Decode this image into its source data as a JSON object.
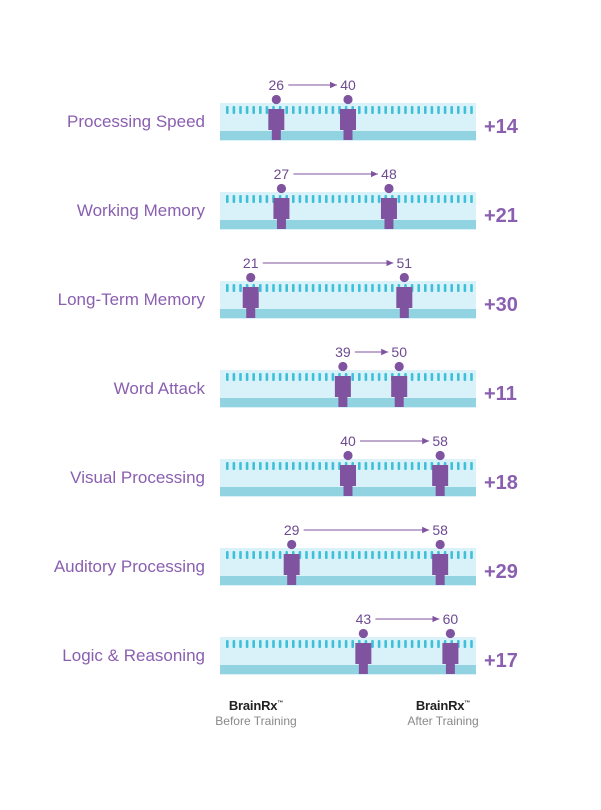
{
  "chart_data": {
    "type": "dumbbell",
    "rows": [
      {
        "label": "Processing Speed",
        "before": 26,
        "after": 40,
        "gain": "+14"
      },
      {
        "label": "Working Memory",
        "before": 27,
        "after": 48,
        "gain": "+21"
      },
      {
        "label": "Long-Term Memory",
        "before": 21,
        "after": 51,
        "gain": "+30"
      },
      {
        "label": "Word Attack",
        "before": 39,
        "after": 50,
        "gain": "+11"
      },
      {
        "label": "Visual Processing",
        "before": 40,
        "after": 58,
        "gain": "+18"
      },
      {
        "label": "Auditory Processing",
        "before": 29,
        "after": 58,
        "gain": "+29"
      },
      {
        "label": "Logic & Reasoning",
        "before": 43,
        "after": 60,
        "gain": "+17"
      }
    ],
    "xlim": [
      15,
      65
    ],
    "colors": {
      "person": "#7f539f",
      "label": "#8a5fb0",
      "value": "#6e4a91",
      "track_light": "#d9f1f8",
      "track_mid": "#92d3e2",
      "ticks": "#3ec0d8",
      "arrow": "#7f539f"
    }
  },
  "footer": {
    "before": {
      "brand": "BrainRx",
      "tm": "™",
      "sub": "Before Training"
    },
    "after": {
      "brand": "BrainRx",
      "tm": "™",
      "sub": "After Training"
    }
  }
}
